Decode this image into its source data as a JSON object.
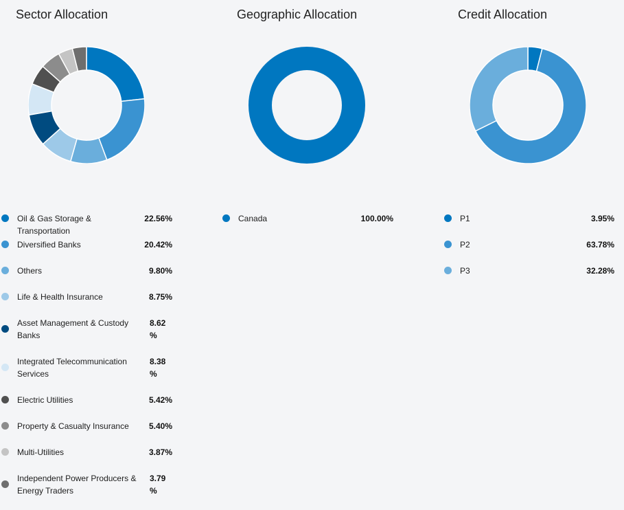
{
  "chart_data": [
    {
      "type": "pie",
      "title": "Sector Allocation",
      "categories": [
        "Oil & Gas Storage & Transportation",
        "Diversified Banks",
        "Others",
        "Life & Health Insurance",
        "Asset Management & Custody Banks",
        "Integrated Telecommunication Services",
        "Electric Utilities",
        "Property & Casualty Insurance",
        "Multi-Utilities",
        "Independent Power Producers & Energy Traders"
      ],
      "values": [
        22.56,
        20.42,
        9.8,
        8.75,
        8.62,
        8.38,
        5.42,
        5.4,
        3.87,
        3.79
      ],
      "value_labels": [
        "22.56%",
        "20.42%",
        "9.80%",
        "8.75%",
        "8.62\n%",
        "8.38\n%",
        "5.42%",
        "5.40%",
        "3.87%",
        "3.79\n%"
      ],
      "colors": [
        "#0077c0",
        "#3a93d1",
        "#6aaedc",
        "#9dc9e8",
        "#004b80",
        "#d4e7f5",
        "#505050",
        "#8c8c8c",
        "#c4c4c4",
        "#6e6e6e"
      ]
    },
    {
      "type": "pie",
      "title": "Geographic Allocation",
      "categories": [
        "Canada"
      ],
      "values": [
        100.0
      ],
      "value_labels": [
        "100.00%"
      ],
      "colors": [
        "#0077c0"
      ]
    },
    {
      "type": "pie",
      "title": "Credit Allocation",
      "categories": [
        "P1",
        "P2",
        "P3"
      ],
      "values": [
        3.95,
        63.78,
        32.28
      ],
      "value_labels": [
        "3.95%",
        "63.78%",
        "32.28%"
      ],
      "colors": [
        "#0077c0",
        "#3a93d1",
        "#6aaedc"
      ]
    }
  ]
}
